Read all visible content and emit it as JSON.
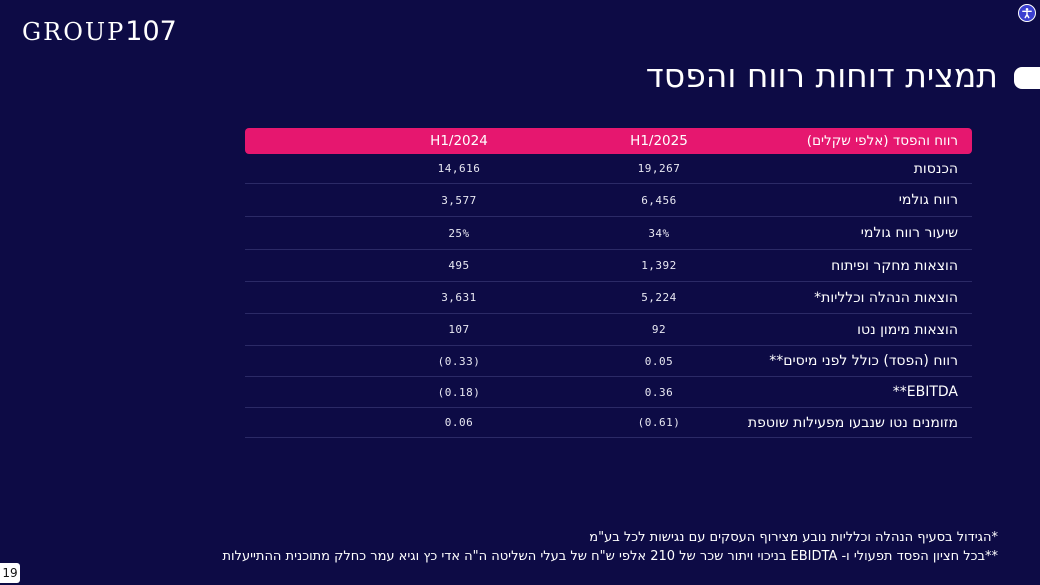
{
  "logo": {
    "text": "GROUP",
    "number": "107"
  },
  "title": "תמצית דוחות רווח והפסד",
  "table": {
    "headers": [
      "רווח והפסד (אלפי שקלים)",
      "H1/2025",
      "H1/2024"
    ],
    "rows": [
      {
        "label": "הכנסות",
        "h1_2025": "19,267",
        "h1_2024": "14,616"
      },
      {
        "label": "רווח גולמי",
        "h1_2025": "6,456",
        "h1_2024": "3,577"
      },
      {
        "label": "שיעור רווח גולמי",
        "h1_2025": "34%",
        "h1_2024": "25%"
      },
      {
        "label": "הוצאות מחקר ופיתוח",
        "h1_2025": "1,392",
        "h1_2024": "495"
      },
      {
        "label": "הוצאות הנהלה וכלליות*",
        "h1_2025": "5,224",
        "h1_2024": "3,631"
      },
      {
        "label": "הוצאות מימון נטו",
        "h1_2025": "92",
        "h1_2024": "107"
      },
      {
        "label": "רווח (הפסד) כולל לפני מיסים**",
        "h1_2025": "0.05",
        "h1_2024": "(0.33)"
      },
      {
        "label": "EBITDA**",
        "h1_2025": "0.36",
        "h1_2024": "(0.18)"
      },
      {
        "label": "מזומנים נטו שנבעו מפעילות שוטפת",
        "h1_2025": "(0.61)",
        "h1_2024": "0.06"
      }
    ]
  },
  "notes": [
    "*הגידול בסעיף הנהלה וכלליות נובע מצירוף העסקים עם נגישות לכל בע\"מ",
    "**בכל חציון הפסד תפעולי ו- EBIDTA בניכוי ויתור שכר של 210 אלפי ש\"ח של בעלי השליטה ה\"ה אדי כץ וגיא עמר כחלק מתוכנית ההתייעלות"
  ],
  "page_number": "19",
  "icons": {
    "accessibility": "accessibility-icon"
  },
  "colors": {
    "background": "#0d0b45",
    "header": "#e6176f",
    "text": "#ffffff"
  }
}
